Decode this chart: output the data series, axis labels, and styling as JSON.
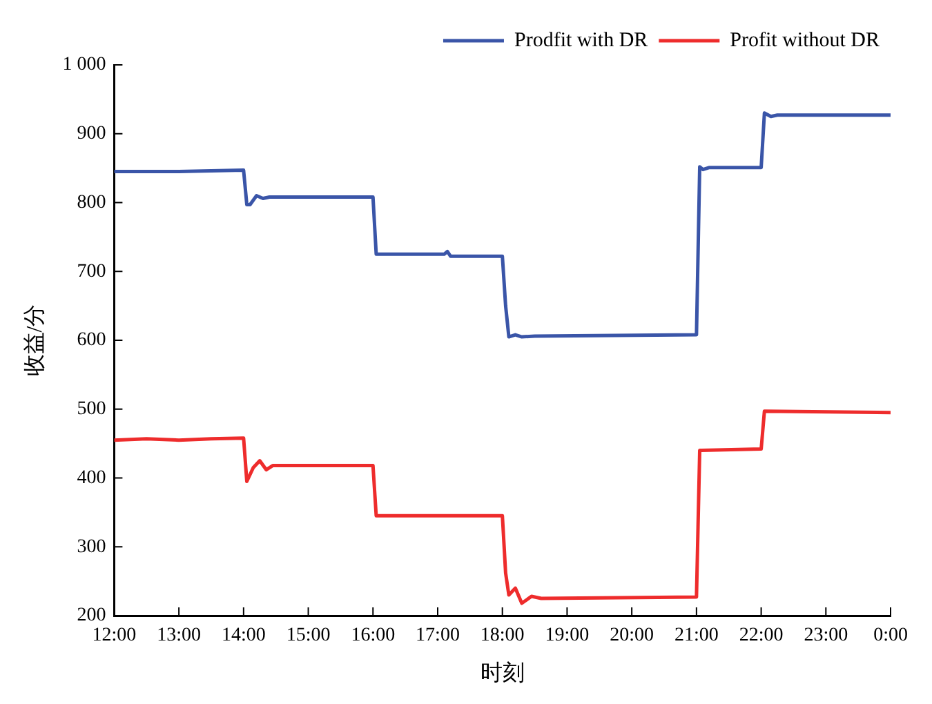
{
  "chart_data": {
    "type": "line",
    "xlabel": "时刻",
    "ylabel": "收益/分",
    "xlim": [
      12,
      24
    ],
    "xticks": [
      {
        "value": 12,
        "label": "12:00"
      },
      {
        "value": 13,
        "label": "13:00"
      },
      {
        "value": 14,
        "label": "14:00"
      },
      {
        "value": 15,
        "label": "15:00"
      },
      {
        "value": 16,
        "label": "16:00"
      },
      {
        "value": 17,
        "label": "17:00"
      },
      {
        "value": 18,
        "label": "18:00"
      },
      {
        "value": 19,
        "label": "19:00"
      },
      {
        "value": 20,
        "label": "20:00"
      },
      {
        "value": 21,
        "label": "21:00"
      },
      {
        "value": 22,
        "label": "22:00"
      },
      {
        "value": 23,
        "label": "23:00"
      },
      {
        "value": 24,
        "label": "0:00"
      }
    ],
    "ylim": [
      200,
      1000
    ],
    "yticks": [
      200,
      300,
      400,
      500,
      600,
      700,
      800,
      900,
      {
        "value": 1000,
        "label": "1 000"
      }
    ],
    "grid": false,
    "legend": "top right",
    "marker": "none",
    "line_style": "solid",
    "series": [
      {
        "name": "Prodfit with DR",
        "color": "#3a55a8",
        "x": [
          12,
          13,
          14,
          14.05,
          14.1,
          14.2,
          14.3,
          14.4,
          16,
          16.05,
          17.1,
          17.15,
          17.2,
          18,
          18.05,
          18.1,
          18.2,
          18.3,
          18.5,
          21,
          21.05,
          21.1,
          21.2,
          22,
          22.05,
          22.15,
          22.25,
          24
        ],
        "values": [
          845,
          845,
          847,
          797,
          797,
          810,
          806,
          808,
          808,
          725,
          725,
          729,
          722,
          722,
          650,
          605,
          608,
          605,
          606,
          608,
          852,
          848,
          851,
          851,
          930,
          925,
          927,
          927
        ]
      },
      {
        "name": "Profit without DR",
        "color": "#ee2c2c",
        "x": [
          12,
          12.5,
          13,
          13.5,
          14,
          14.05,
          14.15,
          14.25,
          14.35,
          14.45,
          16,
          16.05,
          18,
          18.05,
          18.1,
          18.2,
          18.3,
          18.45,
          18.6,
          21,
          21.05,
          22,
          22.05,
          24
        ],
        "values": [
          455,
          457,
          455,
          457,
          458,
          395,
          415,
          425,
          412,
          418,
          418,
          345,
          345,
          262,
          230,
          240,
          218,
          228,
          225,
          227,
          440,
          442,
          497,
          495
        ]
      }
    ]
  }
}
